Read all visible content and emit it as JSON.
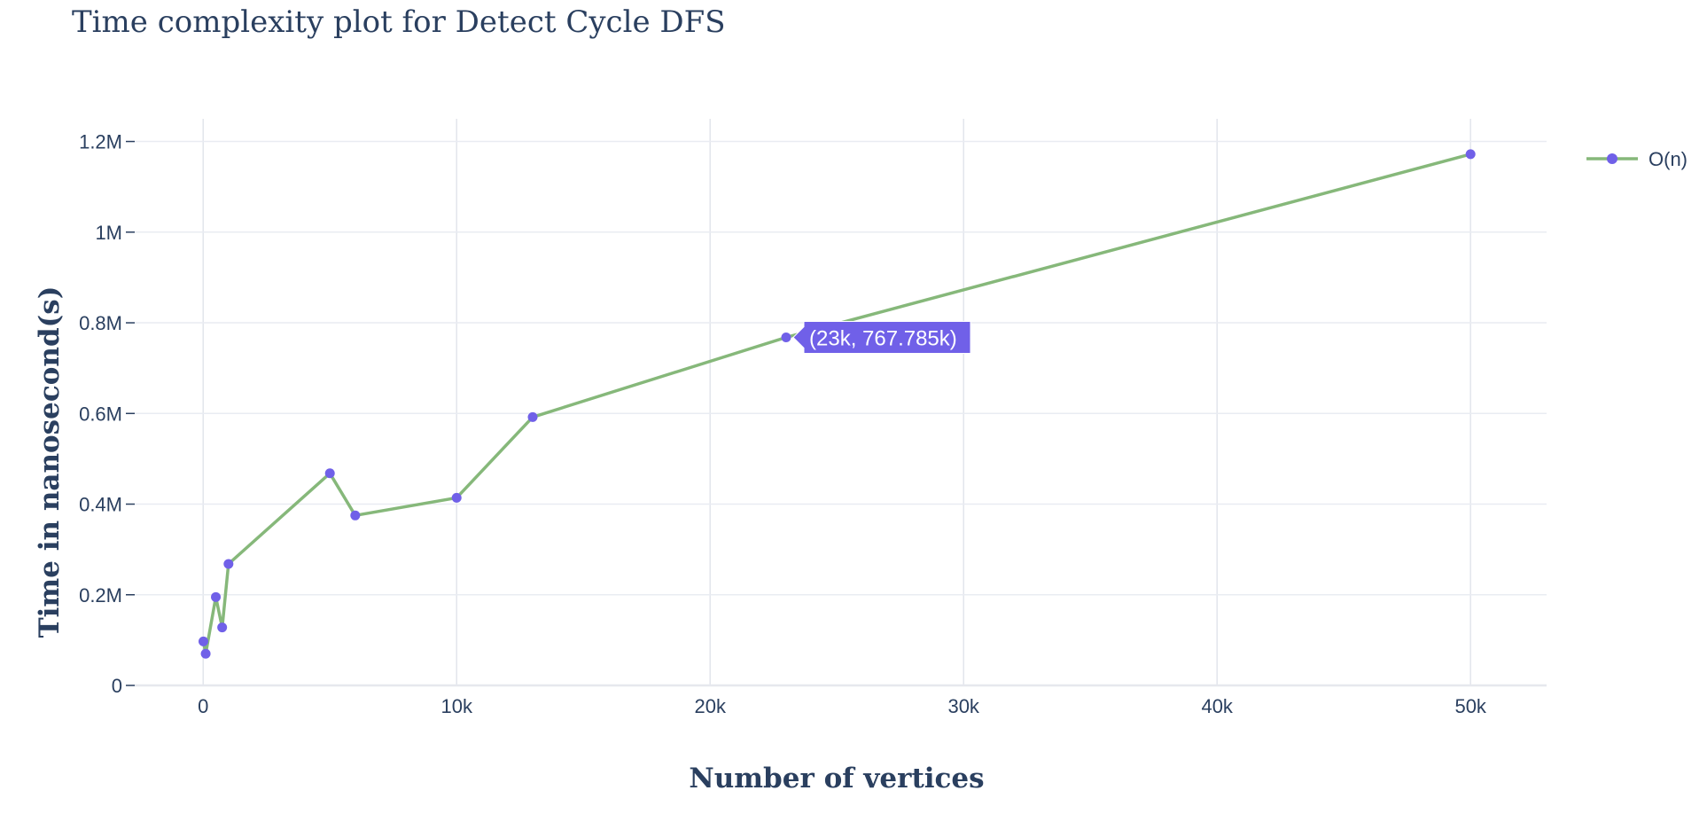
{
  "chart_data": {
    "type": "line",
    "title": "Time complexity plot for Detect Cycle DFS",
    "xlabel": "Number of vertices",
    "ylabel": "Time in nanosecond(s)",
    "xlim": [
      -2700,
      53000
    ],
    "ylim": [
      0,
      1250000
    ],
    "x_ticks": [
      {
        "value": 0,
        "label": "0"
      },
      {
        "value": 10000,
        "label": "10k"
      },
      {
        "value": 20000,
        "label": "20k"
      },
      {
        "value": 30000,
        "label": "30k"
      },
      {
        "value": 40000,
        "label": "40k"
      },
      {
        "value": 50000,
        "label": "50k"
      }
    ],
    "y_ticks": [
      {
        "value": 0,
        "label": "0"
      },
      {
        "value": 200000,
        "label": "0.2M"
      },
      {
        "value": 400000,
        "label": "0.4M"
      },
      {
        "value": 600000,
        "label": "0.6M"
      },
      {
        "value": 800000,
        "label": "0.8M"
      },
      {
        "value": 1000000,
        "label": "1M"
      },
      {
        "value": 1200000,
        "label": "1.2M"
      }
    ],
    "grid": true,
    "legend_position": "top-right",
    "series": [
      {
        "name": "O(n)",
        "line_color": "#86b87a",
        "marker_color": "#7060e8",
        "x": [
          10,
          100,
          500,
          750,
          1000,
          5000,
          6000,
          10000,
          13000,
          23000,
          50000
        ],
        "y": [
          97000,
          70000,
          195000,
          128000,
          268000,
          468000,
          375000,
          414000,
          592000,
          767785,
          1172000
        ]
      }
    ],
    "hover": {
      "x": 23000,
      "y": 767785,
      "label": "(23k, 767.785k)",
      "color": "#7060e8"
    }
  }
}
